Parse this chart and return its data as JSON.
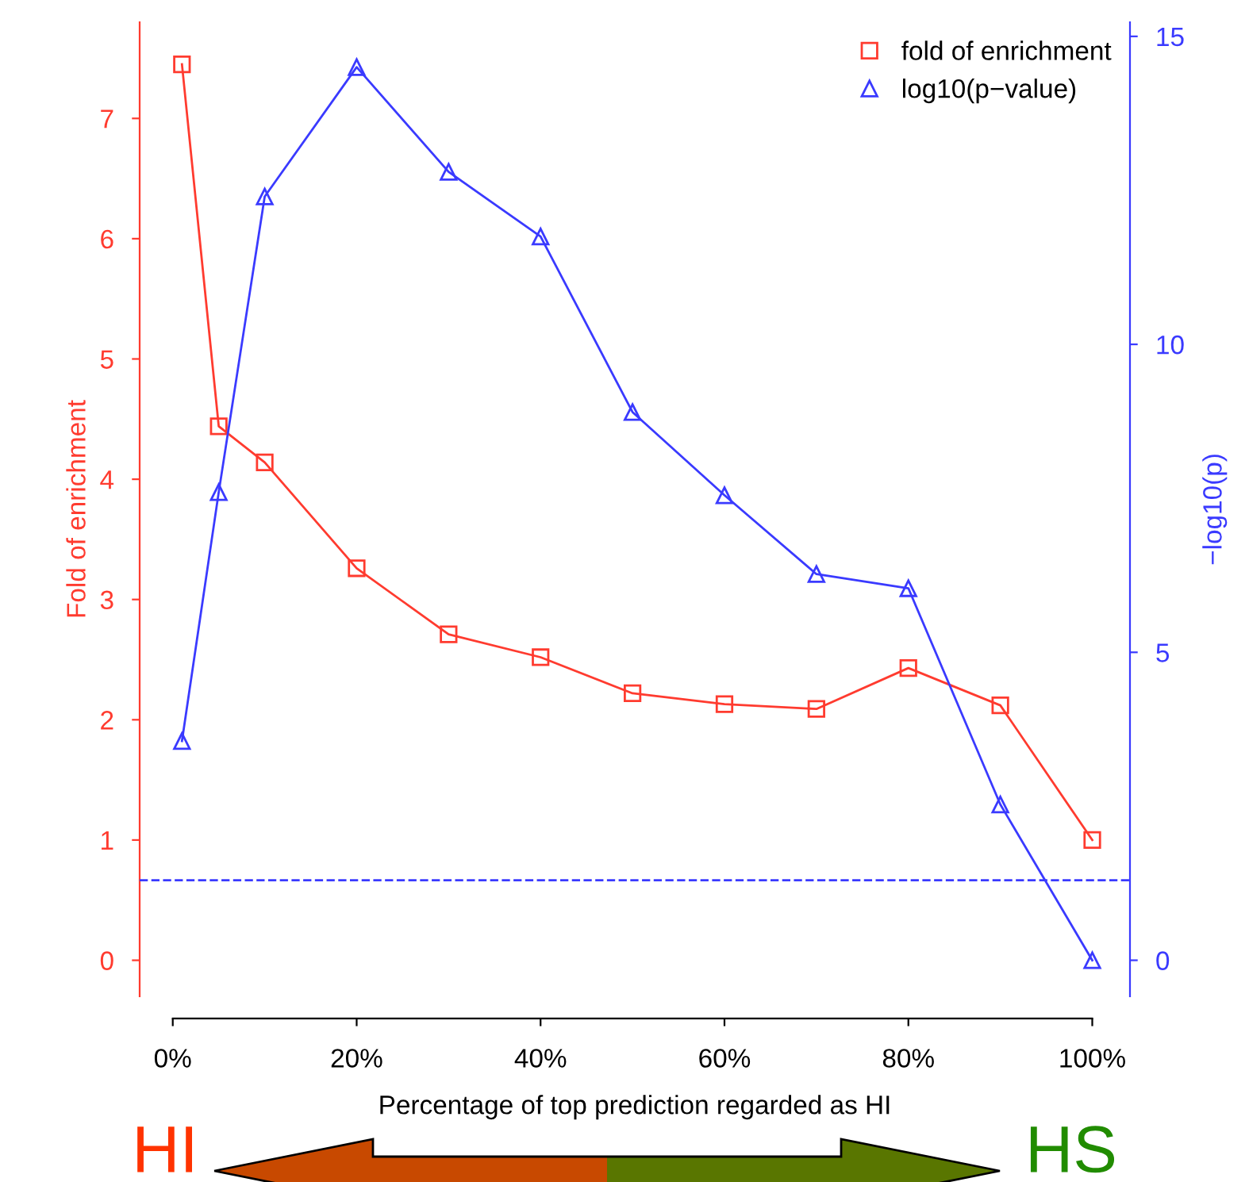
{
  "chart_data": {
    "type": "line",
    "x": [
      1,
      5,
      10,
      20,
      30,
      40,
      50,
      60,
      70,
      80,
      90,
      100
    ],
    "series": [
      {
        "name": "fold of enrichment",
        "color": "#ff3b2f",
        "marker": "square",
        "values": [
          7.45,
          4.44,
          4.14,
          3.26,
          2.71,
          2.52,
          2.22,
          2.13,
          2.09,
          2.43,
          2.12,
          1.0
        ]
      },
      {
        "name": "log10(p−value)",
        "color": "#3a3aff",
        "marker": "triangle",
        "axis": "y2",
        "values": [
          3.56,
          7.6,
          12.4,
          14.5,
          12.8,
          11.75,
          8.9,
          7.55,
          6.27,
          6.04,
          2.53,
          0
        ]
      }
    ],
    "xlabel": "Percentage of top prediction regarded as HI",
    "ylabel": "Fold of enrichment",
    "y2label": "−log10(p)",
    "xlim": [
      -3.6,
      104.1
    ],
    "xticks": [
      {
        "value": 0,
        "label": "0%"
      },
      {
        "value": 20,
        "label": "20%"
      },
      {
        "value": 40,
        "label": "40%"
      },
      {
        "value": 60,
        "label": "60%"
      },
      {
        "value": 80,
        "label": "80%"
      },
      {
        "value": 100,
        "label": "100%"
      }
    ],
    "ylim": [
      -0.3,
      7.8
    ],
    "yticks": [
      0,
      1,
      2,
      3,
      4,
      5,
      6,
      7
    ],
    "y2lim": [
      -0.586,
      15.23
    ],
    "y2ticks": [
      0,
      5,
      10,
      15
    ],
    "ref_lines": [
      {
        "axis": "y2",
        "value": 1.3,
        "color": "#3a3aff",
        "line_style": "dashed"
      }
    ],
    "annotations": [
      "HI",
      "HS"
    ],
    "legend": "top right",
    "grid": false
  }
}
